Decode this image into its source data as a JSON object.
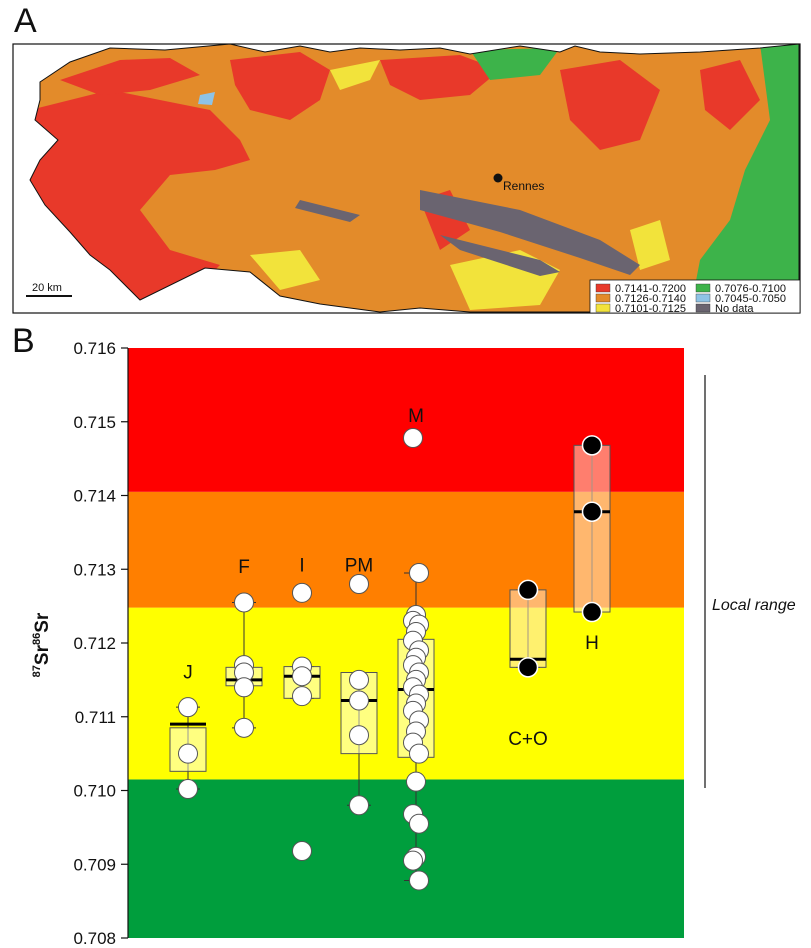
{
  "panels": {
    "a": "A",
    "b": "B"
  },
  "map": {
    "city_label": "Rennes",
    "scale_label": "20 km",
    "legend": [
      {
        "label": "0.7141-0.7200",
        "color": "#e8392a"
      },
      {
        "label": "0.7126-0.7140",
        "color": "#e38b2a"
      },
      {
        "label": "0.7101-0.7125",
        "color": "#f2e33b"
      },
      {
        "label": "0.7076-0.7100",
        "color": "#3db34a"
      },
      {
        "label": "0.7045-0.7050",
        "color": "#8ec3e6"
      },
      {
        "label": "No data",
        "color": "#6a6470"
      }
    ]
  },
  "chart_data": {
    "type": "box",
    "ylabel_main": "Sr",
    "ylabel_sup1": "87",
    "ylabel_sup2": "86",
    "ylim": [
      0.708,
      0.716
    ],
    "yticks": [
      "0.708",
      "0.709",
      "0.710",
      "0.711",
      "0.712",
      "0.713",
      "0.714",
      "0.715",
      "0.716"
    ],
    "yticks_values": [
      0.708,
      0.709,
      0.71,
      0.711,
      0.712,
      0.713,
      0.714,
      0.715,
      0.716
    ],
    "bands": [
      {
        "from": 0.708,
        "to": 0.71015,
        "color": "#009e3d"
      },
      {
        "from": 0.71015,
        "to": 0.71248,
        "color": "#ffff00"
      },
      {
        "from": 0.71248,
        "to": 0.71405,
        "color": "#ff7f00"
      },
      {
        "from": 0.71405,
        "to": 0.716,
        "color": "#ff0000"
      }
    ],
    "side_label": "Local range",
    "groups": [
      {
        "name": "J",
        "box": [
          0.71026,
          0.71085
        ],
        "median": 0.7109,
        "whisker": [
          0.71002,
          0.71113
        ],
        "points": [
          0.71113,
          0.7105,
          0.71002
        ],
        "filled": false
      },
      {
        "name": "F",
        "box": [
          0.71142,
          0.71167
        ],
        "median": 0.7115,
        "whisker": [
          0.71085,
          0.71255
        ],
        "points": [
          0.71255,
          0.7117,
          0.7116,
          0.7114,
          0.71085
        ],
        "filled": false
      },
      {
        "name": "I",
        "box": [
          0.71125,
          0.71168
        ],
        "median": 0.71155,
        "whisker": [
          0.71125,
          0.71168
        ],
        "points": [
          0.71268,
          0.71168,
          0.71155,
          0.71128,
          0.70918
        ],
        "filled": false
      },
      {
        "name": "PM",
        "box": [
          0.7105,
          0.7116
        ],
        "median": 0.71122,
        "whisker": [
          0.7098,
          0.7116
        ],
        "points": [
          0.7128,
          0.7115,
          0.71122,
          0.71075,
          0.7098
        ],
        "filled": false
      },
      {
        "name": "M",
        "box": [
          0.71045,
          0.71205
        ],
        "median": 0.71137,
        "whisker": [
          0.70878,
          0.71295
        ],
        "points": [
          0.71478,
          0.71295,
          0.71238,
          0.7123,
          0.71225,
          0.71215,
          0.71203,
          0.7119,
          0.7118,
          0.7117,
          0.7116,
          0.7115,
          0.7114,
          0.7113,
          0.71118,
          0.71108,
          0.71095,
          0.7108,
          0.71065,
          0.7105,
          0.71012,
          0.70968,
          0.70955,
          0.7091,
          0.70905,
          0.70878
        ],
        "filled": false
      },
      {
        "name": "C+O",
        "box": [
          0.71167,
          0.71272
        ],
        "median": 0.71178,
        "whisker": [
          0.71167,
          0.71272
        ],
        "points": [
          0.71272,
          0.71167
        ],
        "filled": true
      },
      {
        "name": "H",
        "box": [
          0.71242,
          0.71468
        ],
        "median": 0.71378,
        "whisker": [
          0.71242,
          0.71468
        ],
        "points": [
          0.71468,
          0.71378,
          0.71242
        ],
        "filled": true
      }
    ]
  }
}
